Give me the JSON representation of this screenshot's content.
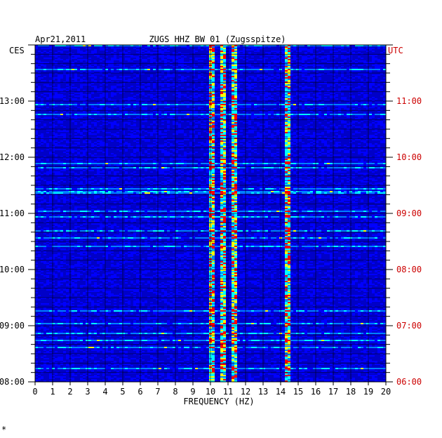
{
  "chart_data": {
    "type": "heatmap",
    "title_left": "Apr21,2011",
    "title_center": "ZUGS HHZ BW 01 (Zugsspitze)",
    "left_axis_label": "CES",
    "right_axis_label": "UTC",
    "xlabel": "FREQUENCY (HZ)",
    "x_ticks": [
      0,
      1,
      2,
      3,
      4,
      5,
      6,
      7,
      8,
      9,
      10,
      11,
      12,
      13,
      14,
      15,
      16,
      17,
      18,
      19,
      20
    ],
    "xlim": [
      0,
      20
    ],
    "left_ticks": [
      {
        "label": "08:00",
        "hour": 8
      },
      {
        "label": "09:00",
        "hour": 9
      },
      {
        "label": "10:00",
        "hour": 10
      },
      {
        "label": "11:00",
        "hour": 11
      },
      {
        "label": "12:00",
        "hour": 12
      },
      {
        "label": "13:00",
        "hour": 13
      }
    ],
    "right_ticks": [
      {
        "label": "06:00",
        "hour": 8
      },
      {
        "label": "07:00",
        "hour": 9
      },
      {
        "label": "08:00",
        "hour": 10
      },
      {
        "label": "09:00",
        "hour": 11
      },
      {
        "label": "10:00",
        "hour": 12
      },
      {
        "label": "11:00",
        "hour": 13
      }
    ],
    "ylim_hours": [
      8,
      14
    ],
    "persistent_lines_hz": [
      10.0,
      10.7,
      11.3,
      14.3
    ],
    "colormap": [
      "#00008b",
      "#0000ff",
      "#0080ff",
      "#00ffff",
      "#ffff00",
      "#ff0000"
    ],
    "colors": {
      "axis": "#000000",
      "right_axis_text": "#cc0000",
      "background": "#0000c8"
    },
    "footnote": "*"
  }
}
